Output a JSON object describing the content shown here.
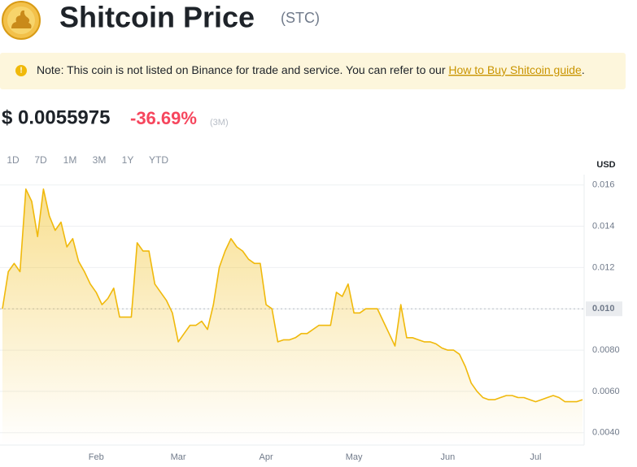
{
  "header": {
    "title": "Shitcoin Price",
    "symbol": "(STC)"
  },
  "note": {
    "text": "Note: This coin is not listed on Binance for trade and service. You can refer to our",
    "link": "How to Buy Shitcoin guide",
    "end": "."
  },
  "price": {
    "value": "$ 0.0055975",
    "change": "-36.69%",
    "period": "(3M)"
  },
  "tabs": [
    "1D",
    "7D",
    "1M",
    "3M",
    "1Y",
    "YTD"
  ],
  "active_tab": 5,
  "chart_data": {
    "type": "line",
    "y_axis_label": "USD",
    "color": "#f0b90b",
    "categories": [
      null,
      null,
      null,
      null,
      null,
      null,
      null,
      null,
      null,
      null,
      null,
      null,
      null,
      null,
      null,
      null,
      "Feb",
      null,
      null,
      null,
      null,
      null,
      null,
      null,
      null,
      null,
      null,
      null,
      null,
      null,
      "Mar",
      null,
      null,
      null,
      null,
      null,
      null,
      null,
      null,
      null,
      null,
      null,
      null,
      null,
      null,
      "Apr",
      null,
      null,
      null,
      null,
      null,
      null,
      null,
      null,
      null,
      null,
      null,
      null,
      null,
      null,
      "May",
      null,
      null,
      null,
      null,
      null,
      null,
      null,
      null,
      null,
      null,
      null,
      null,
      null,
      null,
      null,
      "Jun",
      null,
      null,
      null,
      null,
      null,
      null,
      null,
      null,
      null,
      null,
      null,
      null,
      null,
      null,
      "Jul",
      null,
      null,
      null,
      null,
      null,
      null,
      null,
      null
    ],
    "values": [
      0.01,
      0.0118,
      0.0122,
      0.0118,
      0.0158,
      0.0152,
      0.0135,
      0.0158,
      0.0145,
      0.0138,
      0.0142,
      0.013,
      0.0134,
      0.0123,
      0.0118,
      0.0112,
      0.0108,
      0.0102,
      0.0105,
      0.011,
      0.0096,
      0.0096,
      0.0096,
      0.0132,
      0.0128,
      0.0128,
      0.0112,
      0.0108,
      0.0104,
      0.0098,
      0.0084,
      0.0088,
      0.0092,
      0.0092,
      0.0094,
      0.009,
      0.0102,
      0.012,
      0.0128,
      0.0134,
      0.013,
      0.0128,
      0.0124,
      0.0122,
      0.0122,
      0.0102,
      0.01,
      0.0084,
      0.0085,
      0.0085,
      0.0086,
      0.0088,
      0.0088,
      0.009,
      0.0092,
      0.0092,
      0.0092,
      0.0108,
      0.0106,
      0.0112,
      0.0098,
      0.0098,
      0.01,
      0.01,
      0.01,
      0.0094,
      0.0088,
      0.0082,
      0.0102,
      0.0086,
      0.0086,
      0.0085,
      0.0084,
      0.0084,
      0.0083,
      0.0081,
      0.008,
      0.008,
      0.0078,
      0.0072,
      0.0064,
      0.006,
      0.0057,
      0.0056,
      0.0056,
      0.0057,
      0.0058,
      0.0058,
      0.0057,
      0.0057,
      0.0056,
      0.0055,
      0.0056,
      0.0057,
      0.0058,
      0.0057,
      0.0055,
      0.0055,
      0.0055,
      0.0056
    ],
    "ylim": [
      0.0034,
      0.0165
    ],
    "yticks": [
      {
        "value": 0.004,
        "label": "0.0040"
      },
      {
        "value": 0.006,
        "label": "0.0060"
      },
      {
        "value": 0.008,
        "label": "0.0080"
      },
      {
        "value": 0.01,
        "label": "0.010"
      },
      0.012,
      0.014,
      0.016
    ],
    "reference_line": 0.01,
    "grid": true
  }
}
